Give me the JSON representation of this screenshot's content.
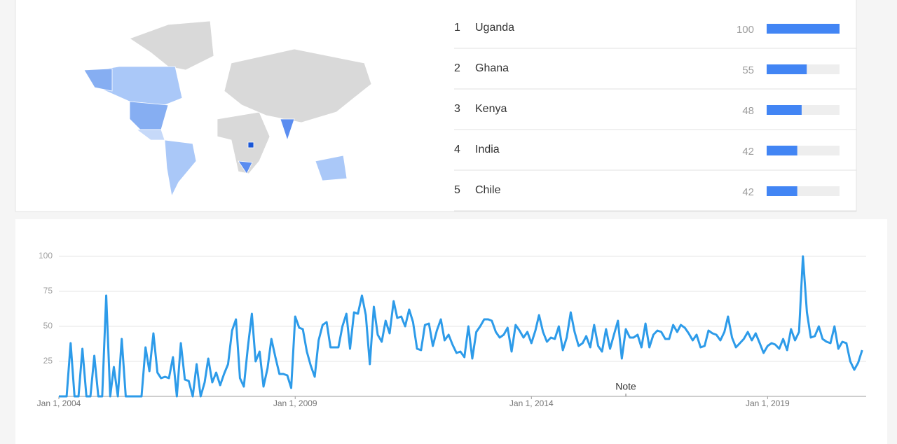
{
  "regions": [
    {
      "rank": 1,
      "name": "Uganda",
      "value": 100
    },
    {
      "rank": 2,
      "name": "Ghana",
      "value": 55
    },
    {
      "rank": 3,
      "name": "Kenya",
      "value": 48
    },
    {
      "rank": 4,
      "name": "India",
      "value": 42
    },
    {
      "rank": 5,
      "name": "Chile",
      "value": 42
    }
  ],
  "chart_data": {
    "type": "line",
    "color": "#2d9be9",
    "grid": true,
    "ylim": [
      0,
      100
    ],
    "yticks": [
      25,
      50,
      75,
      100
    ],
    "xlim": [
      "2004-01-01",
      "2021-02-01"
    ],
    "xticks": [
      {
        "value": "2004-01-01",
        "label": "Jan 1, 2004"
      },
      {
        "value": "2009-01-01",
        "label": "Jan 1, 2009"
      },
      {
        "value": "2014-01-01",
        "label": "Jan 1, 2014"
      },
      {
        "value": "2019-01-01",
        "label": "Jan 1, 2019"
      }
    ],
    "annotations": [
      {
        "x": "2016-01-01",
        "text": "Note"
      }
    ],
    "x": [
      "2004-01-01",
      "2004-02-01",
      "2004-03-01",
      "2004-04-01",
      "2004-05-01",
      "2004-06-01",
      "2004-07-01",
      "2004-08-01",
      "2004-09-01",
      "2004-10-01",
      "2004-11-01",
      "2004-12-01",
      "2005-01-01",
      "2005-02-01",
      "2005-03-01",
      "2005-04-01",
      "2005-05-01",
      "2005-06-01",
      "2005-07-01",
      "2005-08-01",
      "2005-09-01",
      "2005-10-01",
      "2005-11-01",
      "2005-12-01",
      "2006-01-01",
      "2006-02-01",
      "2006-03-01",
      "2006-04-01",
      "2006-05-01",
      "2006-06-01",
      "2006-07-01",
      "2006-08-01",
      "2006-09-01",
      "2006-10-01",
      "2006-11-01",
      "2006-12-01",
      "2007-01-01",
      "2007-02-01",
      "2007-03-01",
      "2007-04-01",
      "2007-05-01",
      "2007-06-01",
      "2007-07-01",
      "2007-08-01",
      "2007-09-01",
      "2007-10-01",
      "2007-11-01",
      "2007-12-01",
      "2008-01-01",
      "2008-02-01",
      "2008-03-01",
      "2008-04-01",
      "2008-05-01",
      "2008-06-01",
      "2008-07-01",
      "2008-08-01",
      "2008-09-01",
      "2008-10-01",
      "2008-11-01",
      "2008-12-01",
      "2009-01-01",
      "2009-02-01",
      "2009-03-01",
      "2009-04-01",
      "2009-05-01",
      "2009-06-01",
      "2009-07-01",
      "2009-08-01",
      "2009-09-01",
      "2009-10-01",
      "2009-11-01",
      "2009-12-01",
      "2010-01-01",
      "2010-02-01",
      "2010-03-01",
      "2010-04-01",
      "2010-05-01",
      "2010-06-01",
      "2010-07-01",
      "2010-08-01",
      "2010-09-01",
      "2010-10-01",
      "2010-11-01",
      "2010-12-01",
      "2011-01-01",
      "2011-02-01",
      "2011-03-01",
      "2011-04-01",
      "2011-05-01",
      "2011-06-01",
      "2011-07-01",
      "2011-08-01",
      "2011-09-01",
      "2011-10-01",
      "2011-11-01",
      "2011-12-01",
      "2012-01-01",
      "2012-02-01",
      "2012-03-01",
      "2012-04-01",
      "2012-05-01",
      "2012-06-01",
      "2012-07-01",
      "2012-08-01",
      "2012-09-01",
      "2012-10-01",
      "2012-11-01",
      "2012-12-01",
      "2013-01-01",
      "2013-02-01",
      "2013-03-01",
      "2013-04-01",
      "2013-05-01",
      "2013-06-01",
      "2013-07-01",
      "2013-08-01",
      "2013-09-01",
      "2013-10-01",
      "2013-11-01",
      "2013-12-01",
      "2014-01-01",
      "2014-02-01",
      "2014-03-01",
      "2014-04-01",
      "2014-05-01",
      "2014-06-01",
      "2014-07-01",
      "2014-08-01",
      "2014-09-01",
      "2014-10-01",
      "2014-11-01",
      "2014-12-01",
      "2015-01-01",
      "2015-02-01",
      "2015-03-01",
      "2015-04-01",
      "2015-05-01",
      "2015-06-01",
      "2015-07-01",
      "2015-08-01",
      "2015-09-01",
      "2015-10-01",
      "2015-11-01",
      "2015-12-01",
      "2016-01-01",
      "2016-02-01",
      "2016-03-01",
      "2016-04-01",
      "2016-05-01",
      "2016-06-01",
      "2016-07-01",
      "2016-08-01",
      "2016-09-01",
      "2016-10-01",
      "2016-11-01",
      "2016-12-01",
      "2017-01-01",
      "2017-02-01",
      "2017-03-01",
      "2017-04-01",
      "2017-05-01",
      "2017-06-01",
      "2017-07-01",
      "2017-08-01",
      "2017-09-01",
      "2017-10-01",
      "2017-11-01",
      "2017-12-01",
      "2018-01-01",
      "2018-02-01",
      "2018-03-01",
      "2018-04-01",
      "2018-05-01",
      "2018-06-01",
      "2018-07-01",
      "2018-08-01",
      "2018-09-01",
      "2018-10-01",
      "2018-11-01",
      "2018-12-01",
      "2019-01-01",
      "2019-02-01",
      "2019-03-01",
      "2019-04-01",
      "2019-05-01",
      "2019-06-01",
      "2019-07-01",
      "2019-08-01",
      "2019-09-01",
      "2019-10-01",
      "2019-11-01",
      "2019-12-01",
      "2020-01-01",
      "2020-02-01",
      "2020-03-01",
      "2020-04-01",
      "2020-05-01",
      "2020-06-01",
      "2020-07-01",
      "2020-08-01",
      "2020-09-01",
      "2020-10-01",
      "2020-11-01",
      "2020-12-01",
      "2021-01-01"
    ],
    "values": [
      0,
      0,
      0,
      38,
      0,
      0,
      34,
      0,
      0,
      29,
      0,
      0,
      72,
      0,
      21,
      0,
      41,
      0,
      0,
      0,
      0,
      0,
      35,
      18,
      45,
      17,
      13,
      14,
      13,
      28,
      0,
      38,
      12,
      11,
      0,
      23,
      0,
      10,
      27,
      10,
      17,
      8,
      16,
      23,
      47,
      55,
      13,
      7,
      35,
      59,
      25,
      32,
      7,
      20,
      41,
      28,
      16,
      16,
      15,
      6,
      57,
      49,
      48,
      32,
      22,
      14,
      40,
      51,
      53,
      35,
      35,
      35,
      50,
      59,
      34,
      60,
      59,
      72,
      58,
      23,
      64,
      44,
      39,
      54,
      45,
      68,
      56,
      57,
      50,
      62,
      53,
      34,
      33,
      51,
      52,
      36,
      47,
      55,
      40,
      44,
      37,
      31,
      32,
      28,
      50,
      27,
      46,
      50,
      55,
      55,
      54,
      46,
      42,
      44,
      49,
      32,
      51,
      47,
      42,
      46,
      38,
      47,
      58,
      46,
      39,
      42,
      41,
      50,
      33,
      42,
      60,
      46,
      36,
      38,
      43,
      35,
      51,
      36,
      32,
      48,
      34,
      44,
      54,
      27,
      48,
      42,
      42,
      44,
      35,
      52,
      35,
      44,
      47,
      46,
      41,
      41,
      51,
      46,
      51,
      49,
      45,
      40,
      44,
      35,
      36,
      47,
      45,
      44,
      40,
      46,
      57,
      42,
      35,
      38,
      41,
      46,
      40,
      45,
      38,
      31,
      36,
      38,
      37,
      34,
      41,
      33,
      48,
      40,
      46,
      100,
      60,
      42,
      43,
      50,
      41,
      39,
      38,
      50,
      34,
      39,
      38,
      25,
      19,
      24,
      33
    ]
  }
}
